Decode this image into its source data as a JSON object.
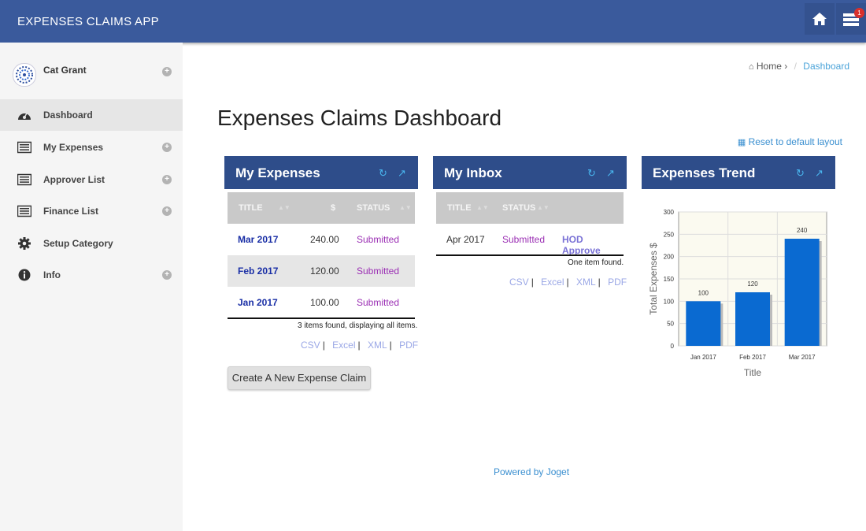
{
  "header": {
    "app_title": "EXPENSES CLAIMS APP",
    "notification_count": "1"
  },
  "sidebar": {
    "user_name": "Cat Grant",
    "items": [
      {
        "label": "Dashboard",
        "icon": "dashboard-icon",
        "expandable": false
      },
      {
        "label": "My Expenses",
        "icon": "list-icon",
        "expandable": true
      },
      {
        "label": "Approver List",
        "icon": "list-icon",
        "expandable": true
      },
      {
        "label": "Finance List",
        "icon": "list-icon",
        "expandable": true
      },
      {
        "label": "Setup Category",
        "icon": "gear-icon",
        "expandable": false
      },
      {
        "label": "Info",
        "icon": "info-icon",
        "expandable": true
      }
    ]
  },
  "breadcrumb": {
    "home": "Home",
    "current": "Dashboard"
  },
  "page_title": "Expenses Claims Dashboard",
  "reset_link": "Reset to default layout",
  "my_expenses": {
    "title": "My Expenses",
    "columns": [
      "TITLE",
      "$",
      "STATUS"
    ],
    "rows": [
      {
        "title": "Mar 2017",
        "amount": "240.00",
        "status": "Submitted"
      },
      {
        "title": "Feb 2017",
        "amount": "120.00",
        "status": "Submitted"
      },
      {
        "title": "Jan 2017",
        "amount": "100.00",
        "status": "Submitted"
      }
    ],
    "footer": "3 items found, displaying all items.",
    "exports": [
      "CSV",
      "Excel",
      "XML",
      "PDF"
    ],
    "create_button": "Create A New Expense Claim"
  },
  "my_inbox": {
    "title": "My Inbox",
    "columns": [
      "TITLE",
      "STATUS"
    ],
    "rows": [
      {
        "title": "Apr 2017",
        "status": "Submitted",
        "action": "HOD Approve"
      }
    ],
    "footer": "One item found.",
    "exports": [
      "CSV",
      "Excel",
      "XML",
      "PDF"
    ]
  },
  "expenses_trend": {
    "title": "Expenses Trend",
    "chart_data": {
      "type": "bar",
      "categories": [
        "Jan 2017",
        "Feb 2017",
        "Mar 2017"
      ],
      "values": [
        100,
        120,
        240
      ],
      "xlabel": "Title",
      "ylabel": "Total Expenses $",
      "ylim": [
        0,
        300
      ],
      "yticks": [
        0,
        50,
        100,
        150,
        200,
        250,
        300
      ],
      "grid": true,
      "bar_color": "#0a6ad1"
    }
  },
  "footer": {
    "powered_by": "Powered by Joget"
  },
  "colors": {
    "header": "#3a5a9c",
    "panel_header": "#2e4d8a",
    "link": "#3a8fd0",
    "status": "#9b2fb4"
  }
}
